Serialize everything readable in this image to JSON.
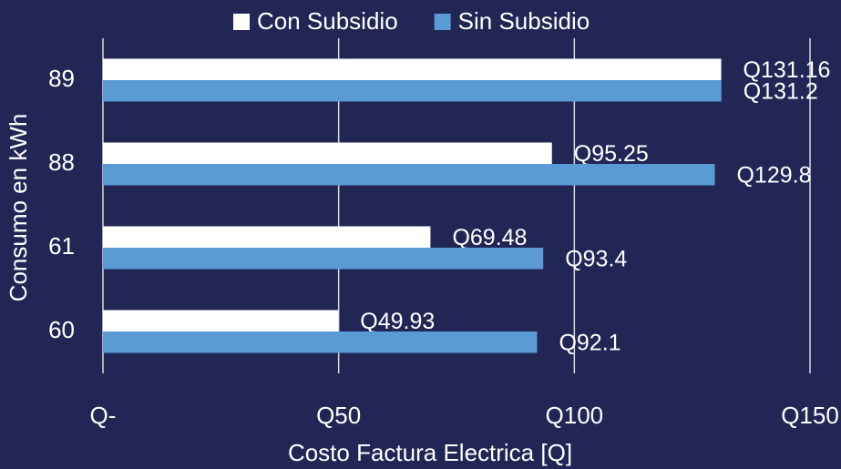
{
  "chart_data": {
    "type": "hbar",
    "xlabel": "Costo Factura Electrica [Q]",
    "ylabel": "Consumo en kWh",
    "categories": [
      "89",
      "88",
      "61",
      "60"
    ],
    "series": [
      {
        "name": "Con Subsidio",
        "color": "#ffffff",
        "values": [
          131.16,
          95.25,
          69.48,
          49.93
        ],
        "value_labels": [
          "Q131.16",
          "Q95.25",
          "Q69.48",
          "Q49.93"
        ]
      },
      {
        "name": "Sin Subsidio",
        "color": "#5b9bd5",
        "values": [
          131.2,
          129.8,
          93.4,
          92.1
        ],
        "value_labels": [
          "Q131.2",
          "Q129.8",
          "Q93.4",
          "Q92.1"
        ]
      }
    ],
    "xlim": [
      0,
      150
    ],
    "xticks": [
      {
        "value": 0,
        "label": "Q-"
      },
      {
        "value": 50,
        "label": "Q50"
      },
      {
        "value": 100,
        "label": "Q100"
      },
      {
        "value": 150,
        "label": "Q150"
      }
    ],
    "grid": true,
    "legend": "top"
  }
}
